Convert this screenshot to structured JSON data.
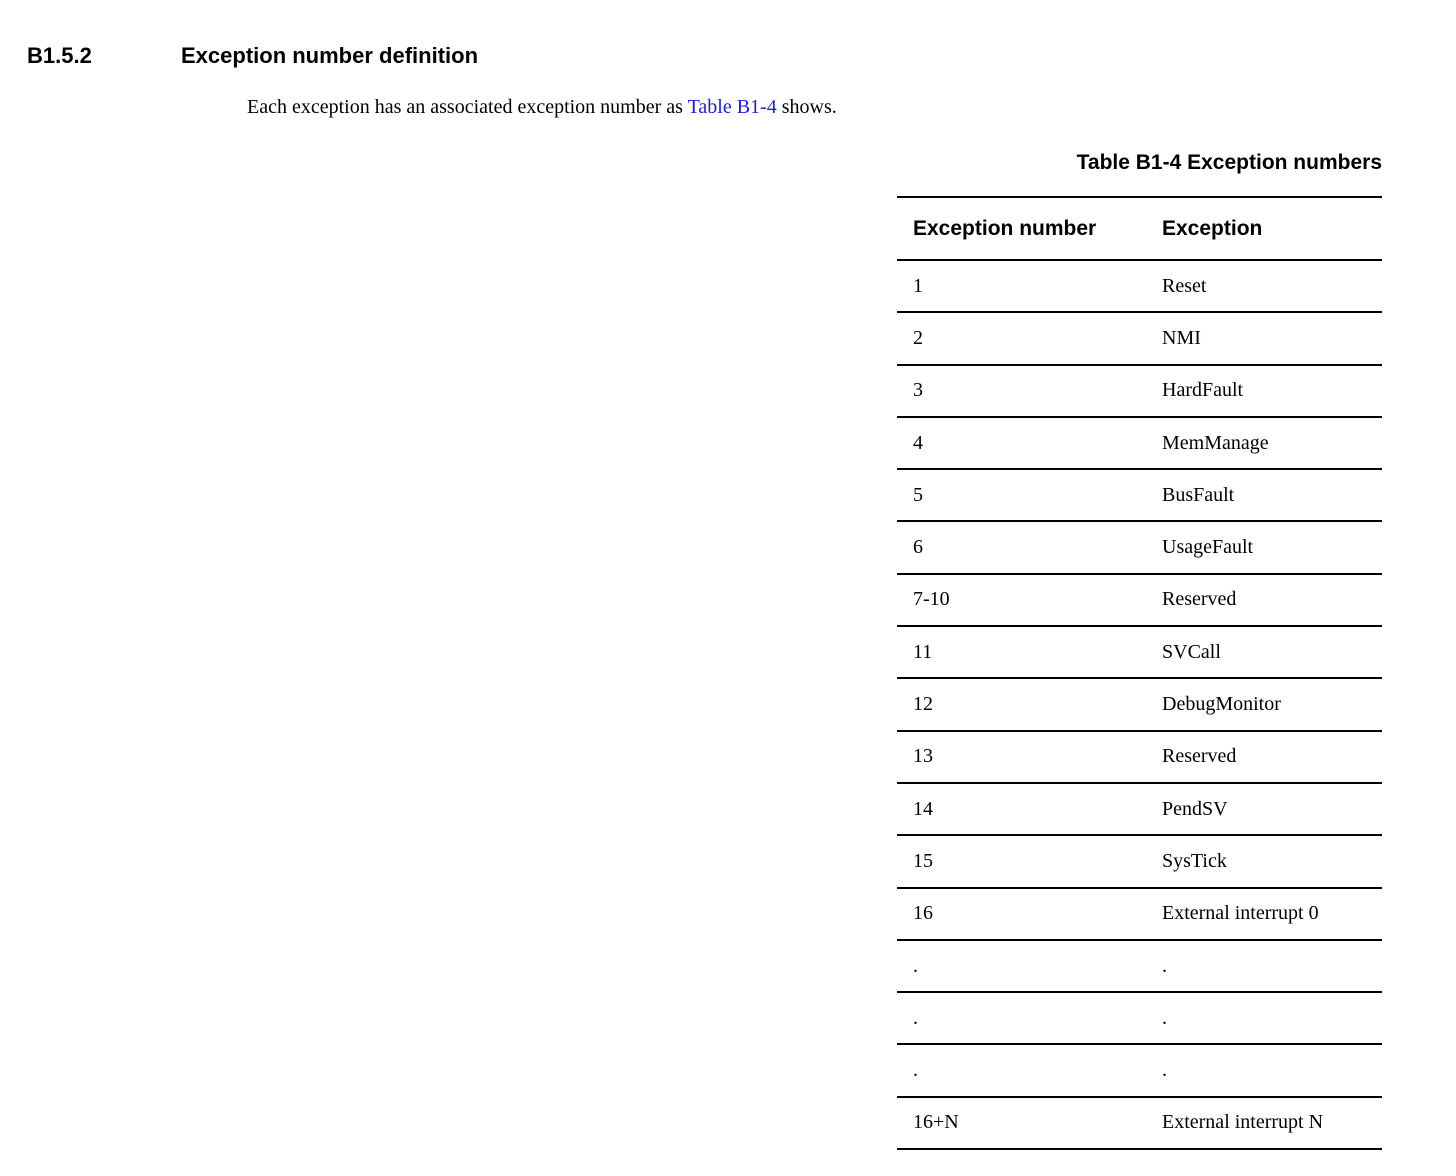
{
  "page": {
    "background_color": "#ffffff",
    "text_color": "#000000",
    "link_color": "#1e1edc",
    "rule_color": "#000000"
  },
  "section": {
    "number": "B1.5.2",
    "title": "Exception number definition"
  },
  "intro": {
    "text_before_link": "Each exception has an associated exception number as ",
    "link_text": "Table B1-4",
    "text_after_link": " shows."
  },
  "table": {
    "caption": "Table B1-4 Exception numbers",
    "columns": [
      "Exception number",
      "Exception"
    ],
    "rows": [
      {
        "number": "1",
        "exception": "Reset"
      },
      {
        "number": "2",
        "exception": "NMI"
      },
      {
        "number": "3",
        "exception": "HardFault"
      },
      {
        "number": "4",
        "exception": "MemManage"
      },
      {
        "number": "5",
        "exception": "BusFault"
      },
      {
        "number": "6",
        "exception": "UsageFault"
      },
      {
        "number": "7-10",
        "exception": "Reserved"
      },
      {
        "number": "11",
        "exception": "SVCall"
      },
      {
        "number": "12",
        "exception": "DebugMonitor"
      },
      {
        "number": "13",
        "exception": "Reserved"
      },
      {
        "number": "14",
        "exception": "PendSV"
      },
      {
        "number": "15",
        "exception": "SysTick"
      },
      {
        "number": "16",
        "exception": "External interrupt 0"
      },
      {
        "number": ".",
        "exception": "."
      },
      {
        "number": ".",
        "exception": "."
      },
      {
        "number": ".",
        "exception": "."
      },
      {
        "number": "16+N",
        "exception": "External interrupt N"
      }
    ]
  }
}
